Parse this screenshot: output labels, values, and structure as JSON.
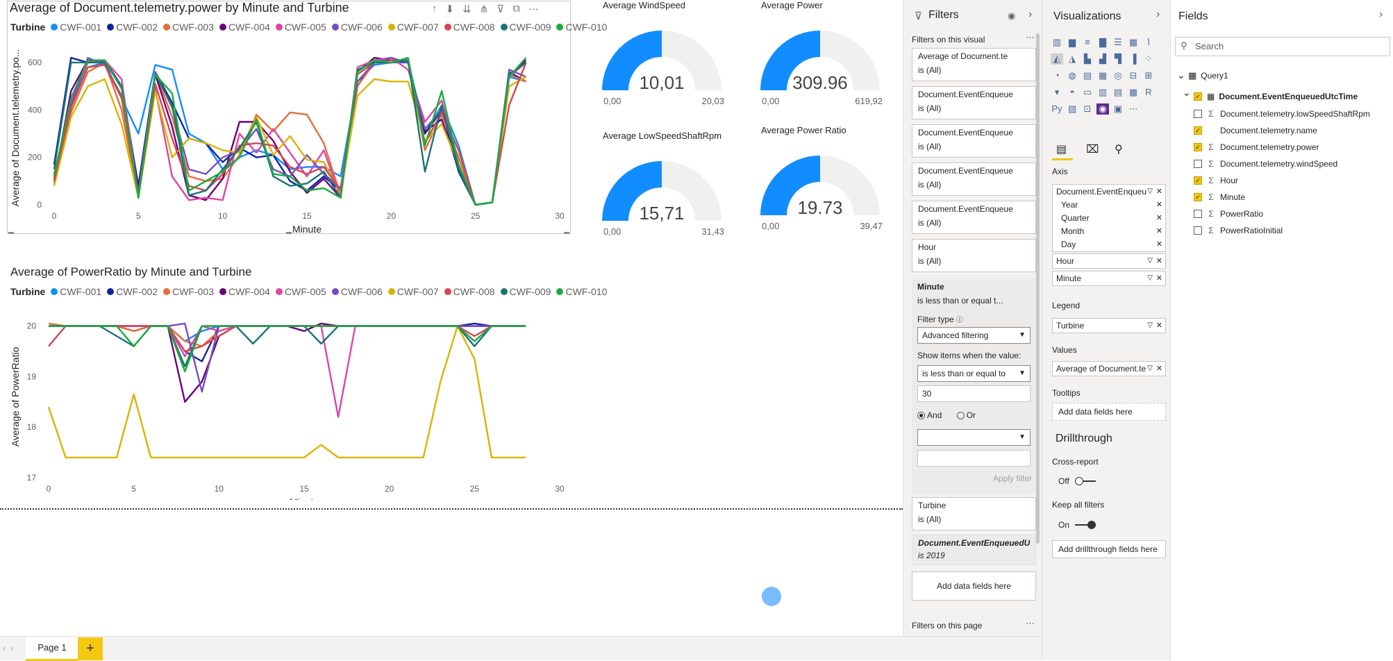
{
  "power_chart": {
    "title": "Average of Document.telemetry.power by Minute and Turbine",
    "legend_title": "Turbine",
    "ylabel": "Average of Document.telemetry.po...",
    "xlabel": "Minute"
  },
  "ratio_chart": {
    "title": "Average of PowerRatio by Minute and Turbine",
    "legend_title": "Turbine",
    "ylabel": "Average of PowerRatio",
    "xlabel": "Minute"
  },
  "turbines": [
    {
      "name": "CWF-001",
      "color": "#118DFF"
    },
    {
      "name": "CWF-002",
      "color": "#12239E"
    },
    {
      "name": "CWF-003",
      "color": "#E66C37"
    },
    {
      "name": "CWF-004",
      "color": "#6B007B"
    },
    {
      "name": "CWF-005",
      "color": "#E044A7"
    },
    {
      "name": "CWF-006",
      "color": "#744EC2"
    },
    {
      "name": "CWF-007",
      "color": "#D9B300"
    },
    {
      "name": "CWF-008",
      "color": "#D64550"
    },
    {
      "name": "CWF-009",
      "color": "#197278"
    },
    {
      "name": "CWF-010",
      "color": "#1AAB40"
    }
  ],
  "chart_data": [
    {
      "type": "line",
      "title": "Average of Document.telemetry.power by Minute and Turbine",
      "xlabel": "Minute",
      "ylabel": "Average of Document.telemetry.po...",
      "xlim": [
        0,
        30
      ],
      "ylim": [
        0,
        650
      ],
      "x_ticks": [
        0,
        5,
        10,
        15,
        20,
        25,
        30
      ],
      "y_ticks": [
        0,
        200,
        400,
        600
      ],
      "legend": "top",
      "x": [
        0,
        1,
        2,
        3,
        4,
        5,
        6,
        7,
        8,
        9,
        10,
        11,
        12,
        13,
        14,
        15,
        16,
        17,
        18,
        19,
        20,
        21,
        22,
        23,
        24,
        25,
        26,
        27,
        28
      ],
      "series": [
        {
          "name": "CWF-001",
          "values": [
            120,
            430,
            580,
            600,
            450,
            300,
            590,
            570,
            300,
            260,
            150,
            200,
            230,
            210,
            150,
            160,
            160,
            120,
            520,
            590,
            600,
            600,
            300,
            420,
            250,
            0,
            10,
            540,
            520
          ]
        },
        {
          "name": "CWF-002",
          "values": [
            170,
            620,
            600,
            610,
            500,
            80,
            560,
            430,
            280,
            260,
            180,
            240,
            200,
            210,
            100,
            60,
            120,
            60,
            500,
            610,
            610,
            610,
            300,
            400,
            140,
            0,
            10,
            560,
            520
          ]
        },
        {
          "name": "CWF-003",
          "values": [
            110,
            390,
            560,
            600,
            400,
            30,
            560,
            370,
            120,
            100,
            110,
            210,
            380,
            310,
            390,
            380,
            260,
            40,
            500,
            600,
            600,
            610,
            230,
            380,
            200,
            0,
            10,
            550,
            520
          ]
        },
        {
          "name": "CWF-004",
          "values": [
            100,
            480,
            610,
            600,
            500,
            60,
            550,
            330,
            40,
            20,
            110,
            350,
            350,
            270,
            140,
            50,
            110,
            30,
            560,
            620,
            610,
            600,
            310,
            360,
            150,
            0,
            10,
            540,
            610
          ]
        },
        {
          "name": "CWF-005",
          "values": [
            90,
            440,
            600,
            610,
            530,
            40,
            490,
            120,
            20,
            30,
            20,
            300,
            220,
            320,
            220,
            120,
            230,
            30,
            580,
            610,
            620,
            570,
            350,
            440,
            170,
            0,
            10,
            540,
            600
          ]
        },
        {
          "name": "CWF-006",
          "values": [
            130,
            420,
            620,
            590,
            460,
            50,
            560,
            410,
            150,
            130,
            200,
            230,
            320,
            150,
            120,
            210,
            130,
            70,
            520,
            600,
            620,
            600,
            320,
            400,
            170,
            0,
            10,
            570,
            540
          ]
        },
        {
          "name": "CWF-007",
          "values": [
            80,
            370,
            500,
            530,
            340,
            30,
            480,
            200,
            280,
            260,
            230,
            220,
            370,
            210,
            290,
            190,
            180,
            50,
            460,
            530,
            520,
            520,
            270,
            340,
            170,
            0,
            10,
            500,
            540
          ]
        },
        {
          "name": "CWF-008",
          "values": [
            100,
            410,
            580,
            590,
            450,
            40,
            510,
            280,
            80,
            60,
            130,
            250,
            260,
            250,
            160,
            130,
            160,
            60,
            550,
            600,
            610,
            610,
            260,
            390,
            230,
            0,
            10,
            420,
            600
          ]
        },
        {
          "name": "CWF-009",
          "values": [
            150,
            600,
            600,
            600,
            500,
            30,
            550,
            420,
            40,
            60,
            150,
            240,
            350,
            120,
            80,
            90,
            140,
            30,
            570,
            600,
            600,
            610,
            140,
            420,
            150,
            0,
            10,
            550,
            600
          ]
        },
        {
          "name": "CWF-010",
          "values": [
            120,
            450,
            610,
            610,
            490,
            30,
            550,
            470,
            60,
            100,
            140,
            200,
            360,
            130,
            120,
            60,
            70,
            30,
            560,
            610,
            600,
            620,
            250,
            480,
            170,
            0,
            10,
            540,
            620
          ]
        }
      ]
    },
    {
      "type": "line",
      "title": "Average of PowerRatio by Minute and Turbine",
      "xlabel": "Minute",
      "ylabel": "Average of PowerRatio",
      "xlim": [
        0,
        30
      ],
      "ylim": [
        17,
        20.2
      ],
      "x_ticks": [
        0,
        5,
        10,
        15,
        20,
        25,
        30
      ],
      "y_ticks": [
        17,
        18,
        19,
        20
      ],
      "legend": "top",
      "x": [
        0,
        1,
        2,
        3,
        4,
        5,
        6,
        7,
        8,
        9,
        10,
        11,
        12,
        13,
        14,
        15,
        16,
        17,
        18,
        19,
        20,
        21,
        22,
        23,
        24,
        25,
        26,
        27,
        28
      ],
      "series": [
        {
          "name": "CWF-001",
          "values": [
            20,
            20,
            20,
            20,
            20,
            19.9,
            20,
            20,
            19.7,
            19.9,
            20,
            20,
            20,
            20,
            20,
            20,
            20,
            20,
            20,
            20,
            20,
            20,
            20,
            20,
            20,
            20,
            20,
            20,
            20
          ]
        },
        {
          "name": "CWF-002",
          "values": [
            20,
            20,
            20,
            20,
            20,
            20,
            20,
            20,
            19.5,
            19.3,
            20,
            20,
            20,
            20,
            20,
            20,
            20,
            20,
            20,
            20,
            20,
            20,
            20,
            20,
            20,
            20.05,
            20,
            20,
            20
          ]
        },
        {
          "name": "CWF-003",
          "values": [
            20.05,
            20,
            20,
            20,
            20,
            19.9,
            20,
            20,
            19.7,
            19.6,
            19.9,
            20,
            20,
            20,
            20,
            20,
            20,
            20,
            20,
            20,
            20,
            20,
            20,
            20,
            20,
            20,
            20,
            20,
            20
          ]
        },
        {
          "name": "CWF-004",
          "values": [
            20,
            20,
            20,
            20,
            20,
            20,
            20,
            20,
            18.5,
            18.9,
            19.8,
            20,
            20,
            20,
            20,
            19.9,
            20.05,
            20,
            20,
            20,
            20,
            20,
            20,
            20,
            20,
            20,
            20,
            20,
            20
          ]
        },
        {
          "name": "CWF-005",
          "values": [
            20,
            20,
            20,
            20,
            20,
            20,
            20,
            20,
            19.4,
            20,
            19.9,
            20,
            20,
            20,
            20,
            20,
            20,
            18.2,
            20,
            20,
            20,
            20,
            20,
            20,
            20,
            19.7,
            20,
            20,
            20
          ]
        },
        {
          "name": "CWF-006",
          "values": [
            20,
            20,
            20,
            20,
            20,
            20,
            20,
            20,
            20.05,
            18.7,
            20,
            20,
            20,
            20,
            20,
            20,
            20,
            20,
            20,
            20,
            20,
            20,
            20,
            20,
            20,
            20,
            20,
            20,
            20
          ]
        },
        {
          "name": "CWF-007",
          "values": [
            18.4,
            17.4,
            17.4,
            17.4,
            17.4,
            18.65,
            17.4,
            17.4,
            17.4,
            17.4,
            17.4,
            17.4,
            17.4,
            17.4,
            17.4,
            17.4,
            17.65,
            17.4,
            17.4,
            17.4,
            17.4,
            17.4,
            17.4,
            18.9,
            20,
            19.35,
            17.4,
            17.4,
            17.4
          ]
        },
        {
          "name": "CWF-008",
          "values": [
            19.6,
            20,
            20,
            20,
            20,
            20,
            20,
            20,
            19.5,
            19.6,
            19.8,
            20,
            20,
            20,
            20,
            20,
            20,
            20,
            20,
            20,
            20,
            20,
            20,
            20,
            20,
            19.8,
            20,
            20,
            20
          ]
        },
        {
          "name": "CWF-009",
          "values": [
            20,
            20,
            20,
            20,
            19.8,
            19.6,
            20,
            20,
            19.2,
            20,
            20,
            20,
            19.65,
            20,
            20,
            20,
            19.65,
            20,
            20,
            20,
            20,
            20,
            20,
            20,
            20,
            19.6,
            20,
            20,
            20
          ]
        },
        {
          "name": "CWF-010",
          "values": [
            20,
            20,
            20,
            20,
            20,
            19.6,
            20,
            20,
            19.1,
            20,
            20,
            20,
            20,
            20,
            20,
            20,
            20,
            20,
            20,
            20,
            20,
            20,
            20,
            20,
            20,
            19.7,
            20,
            20,
            20
          ]
        }
      ]
    }
  ],
  "gauges": [
    {
      "title": "Average WindSpeed",
      "value": "10,01",
      "min": "0,00",
      "max": "20,03",
      "fraction": 0.5
    },
    {
      "title": "Average Power",
      "value": "309.96",
      "min": "0,00",
      "max": "619,92",
      "fraction": 0.5
    },
    {
      "title": "Average LowSpeedShaftRpm",
      "value": "15,71",
      "min": "0,00",
      "max": "31,43",
      "fraction": 0.5
    },
    {
      "title": "Average Power Ratio",
      "value": "19.73",
      "min": "0,00",
      "max": "39,47",
      "fraction": 0.5
    }
  ],
  "filters": {
    "title": "Filters",
    "on_visual_label": "Filters on this visual",
    "cards": [
      {
        "name": "Average of Document.te",
        "value": "is (All)"
      },
      {
        "name": "Document.EventEnqueue",
        "value": "is (All)"
      },
      {
        "name": "Document.EventEnqueue",
        "value": "is (All)"
      },
      {
        "name": "Document.EventEnqueue",
        "value": "is (All)"
      },
      {
        "name": "Document.EventEnqueue",
        "value": "is (All)"
      },
      {
        "name": "Hour",
        "value": "is (All)"
      }
    ],
    "expanded": {
      "name": "Minute",
      "value": "is less than or equal t...",
      "filter_type_label": "Filter type",
      "filter_type": "Advanced filtering",
      "show_items_label": "Show items when the value:",
      "condition": "is less than or equal to",
      "input_value": "30",
      "and_label": "And",
      "or_label": "Or",
      "apply_label": "Apply filter"
    },
    "turbine_card": {
      "name": "Turbine",
      "value": "is (All)"
    },
    "locked_card": {
      "name": "Document.EventEnqueuedUtc",
      "value": "is 2019"
    },
    "add_fields": "Add data fields here",
    "on_page_label": "Filters on this page"
  },
  "visualizations": {
    "title": "Visualizations",
    "axis_label": "Axis",
    "axis_field": "Document.EventEnqueu",
    "hierarchy": [
      "Year",
      "Quarter",
      "Month",
      "Day"
    ],
    "axis_hour": "Hour",
    "axis_minute": "Minute",
    "legend_label": "Legend",
    "legend_field": "Turbine",
    "values_label": "Values",
    "values_field": "Average of Document.te",
    "tooltips_label": "Tooltips",
    "tooltips_add": "Add data fields here",
    "drillthrough_label": "Drillthrough",
    "cross_report_label": "Cross-report",
    "cross_report_state": "Off",
    "keep_filters_label": "Keep all filters",
    "keep_filters_state": "On",
    "drill_add": "Add drillthrough fields here"
  },
  "fields": {
    "title": "Fields",
    "search_placeholder": "Search",
    "table": "Query1",
    "group": "Document.EventEnqueuedUtcTime",
    "items": [
      {
        "label": "Document.telemetry.lowSpeedShaftRpm",
        "checked": false,
        "sigma": true
      },
      {
        "label": "Document.telemetry.name",
        "checked": true,
        "sigma": false
      },
      {
        "label": "Document.telemetry.power",
        "checked": true,
        "sigma": true
      },
      {
        "label": "Document.telemetry.windSpeed",
        "checked": false,
        "sigma": true
      },
      {
        "label": "Hour",
        "checked": true,
        "sigma": true
      },
      {
        "label": "Minute",
        "checked": true,
        "sigma": true
      },
      {
        "label": "PowerRatio",
        "checked": false,
        "sigma": true
      },
      {
        "label": "PowerRatioInitial",
        "checked": false,
        "sigma": true
      }
    ]
  },
  "tabs": {
    "page": "Page 1",
    "add": "+"
  }
}
